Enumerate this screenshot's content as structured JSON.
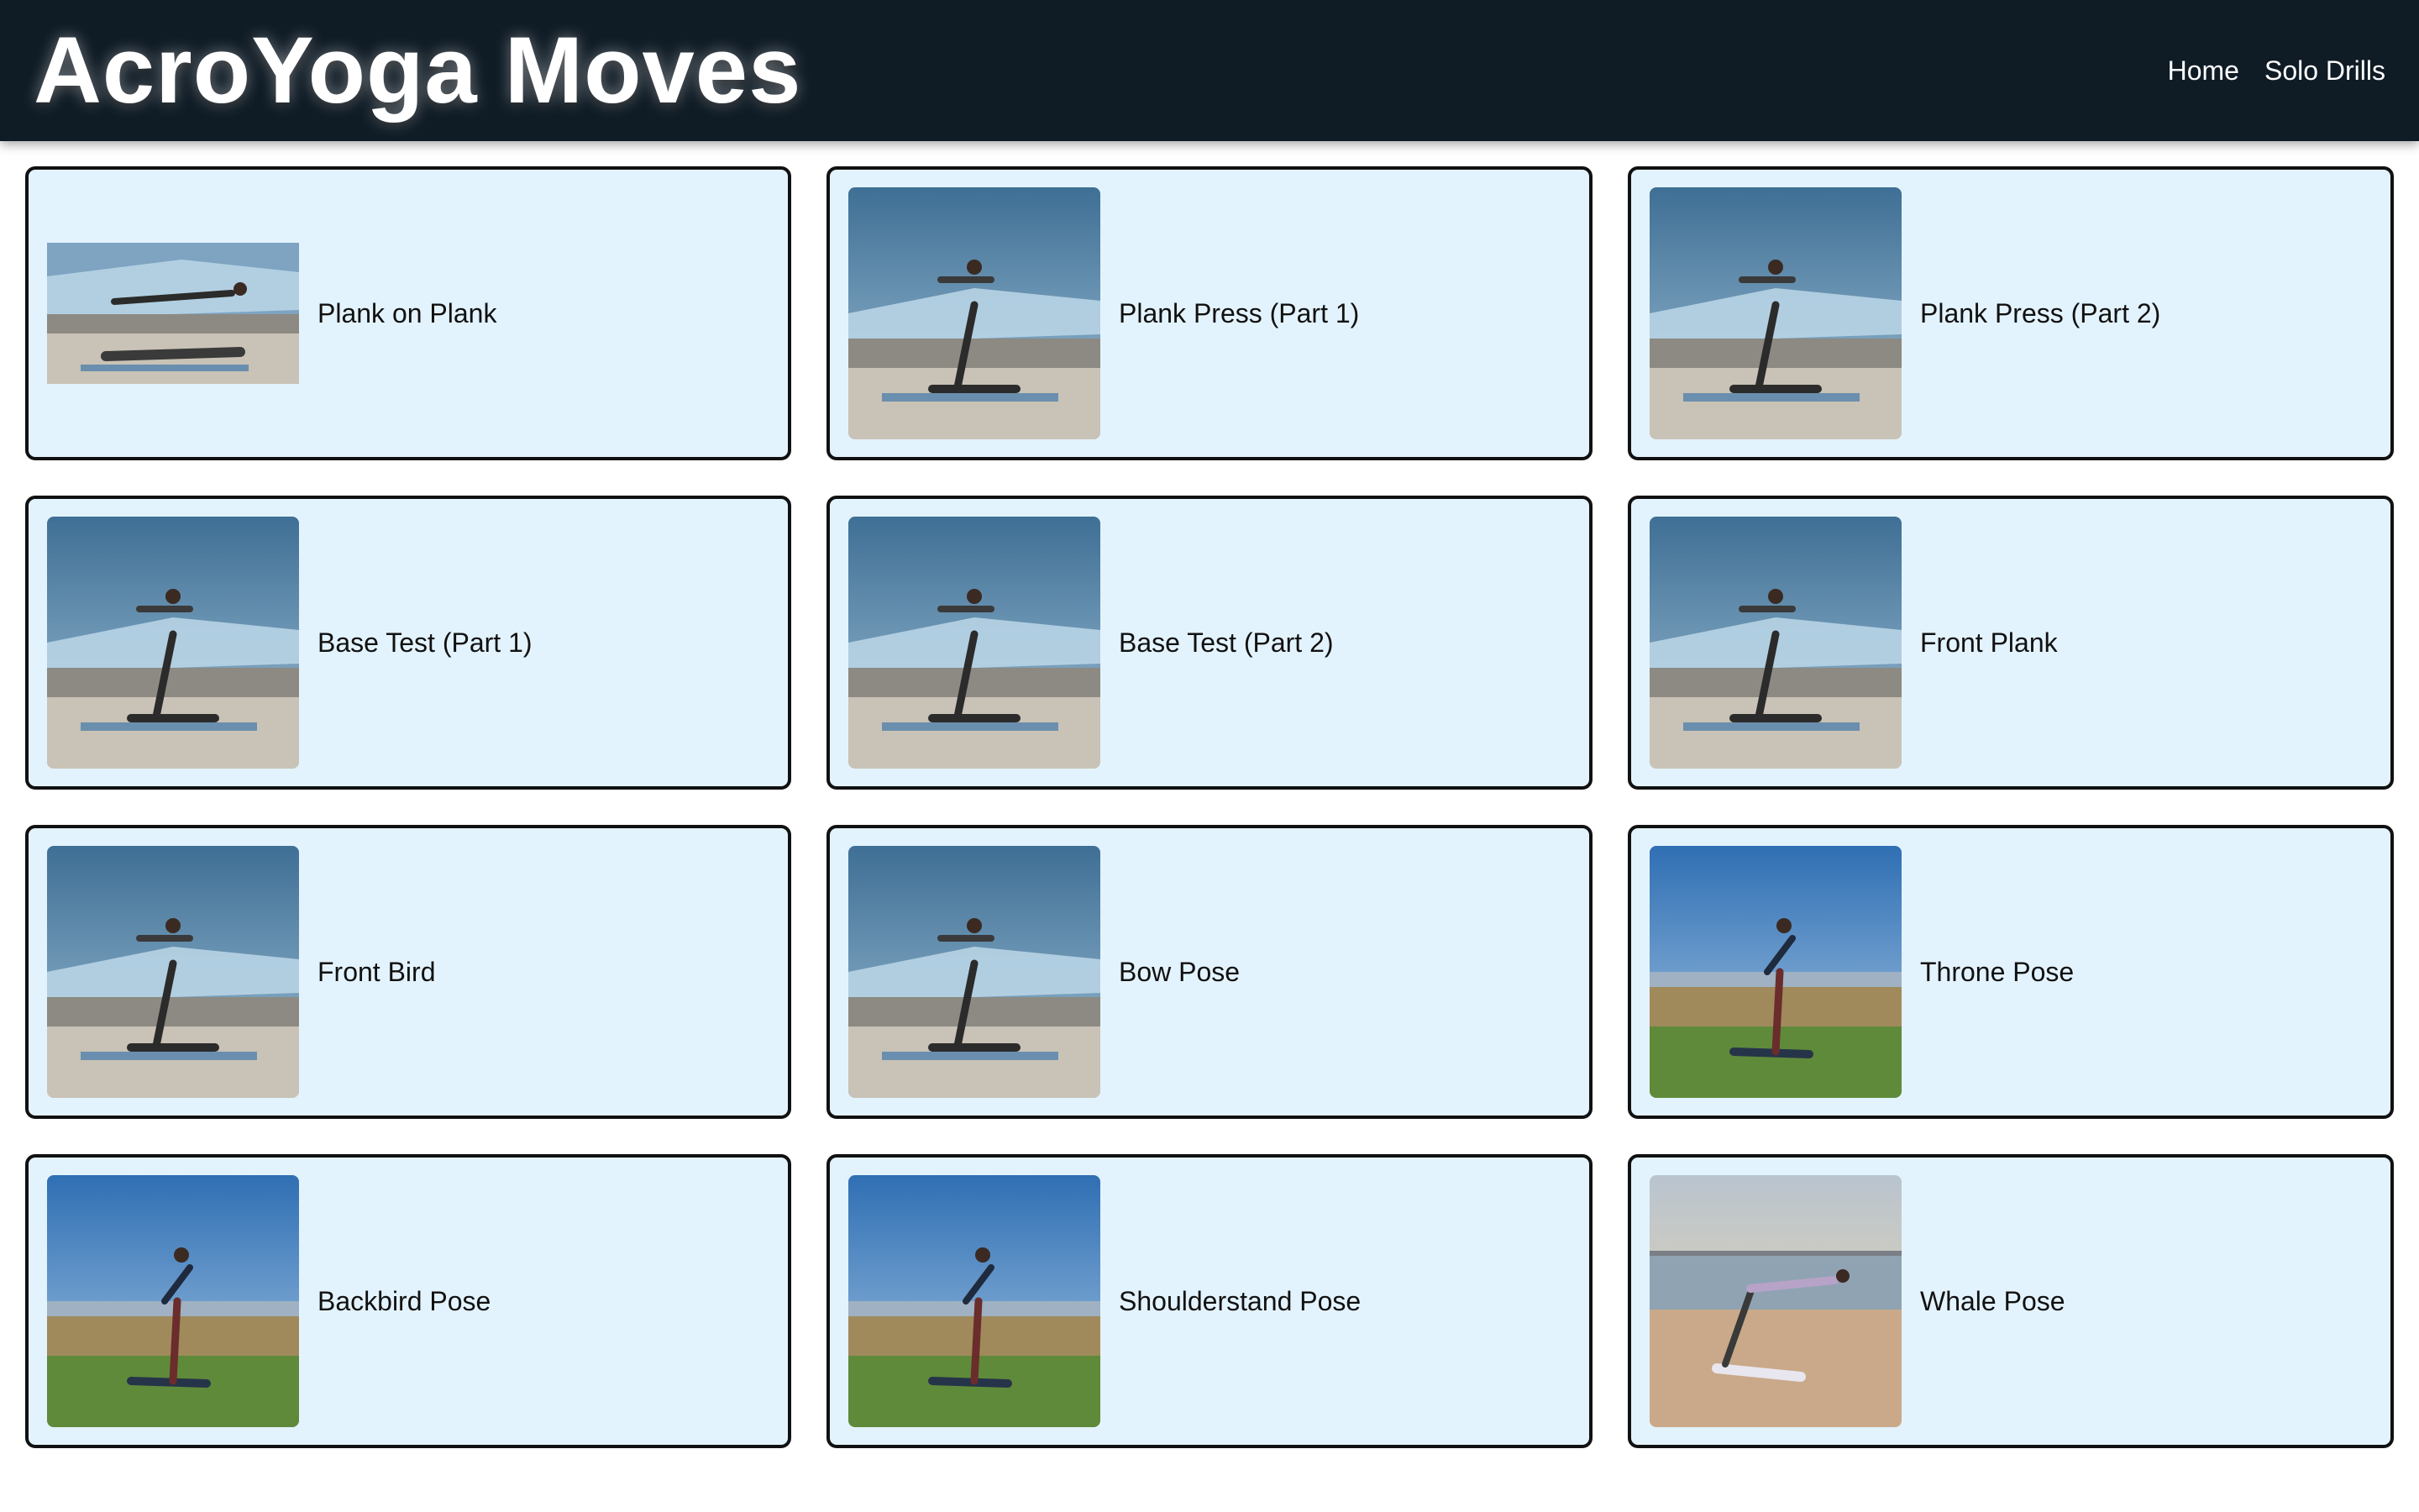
{
  "header": {
    "title": "AcroYoga Moves",
    "nav": [
      {
        "label": "Home"
      },
      {
        "label": "Solo Drills"
      }
    ]
  },
  "moves": [
    {
      "label": "Plank on Plank",
      "scene": "rooftop-horizontal"
    },
    {
      "label": "Plank Press (Part 1)",
      "scene": "rooftop"
    },
    {
      "label": "Plank Press (Part 2)",
      "scene": "rooftop"
    },
    {
      "label": "Base Test (Part 1)",
      "scene": "rooftop"
    },
    {
      "label": "Base Test (Part 2)",
      "scene": "rooftop"
    },
    {
      "label": "Front Plank",
      "scene": "rooftop"
    },
    {
      "label": "Front Bird",
      "scene": "rooftop"
    },
    {
      "label": "Bow Pose",
      "scene": "rooftop"
    },
    {
      "label": "Throne Pose",
      "scene": "field"
    },
    {
      "label": "Backbird Pose",
      "scene": "field"
    },
    {
      "label": "Shoulderstand Pose",
      "scene": "field"
    },
    {
      "label": "Whale Pose",
      "scene": "beach"
    }
  ],
  "colors": {
    "header_bg": "#0f1b25",
    "card_bg": "#e3f3fd",
    "card_border": "#111111"
  }
}
